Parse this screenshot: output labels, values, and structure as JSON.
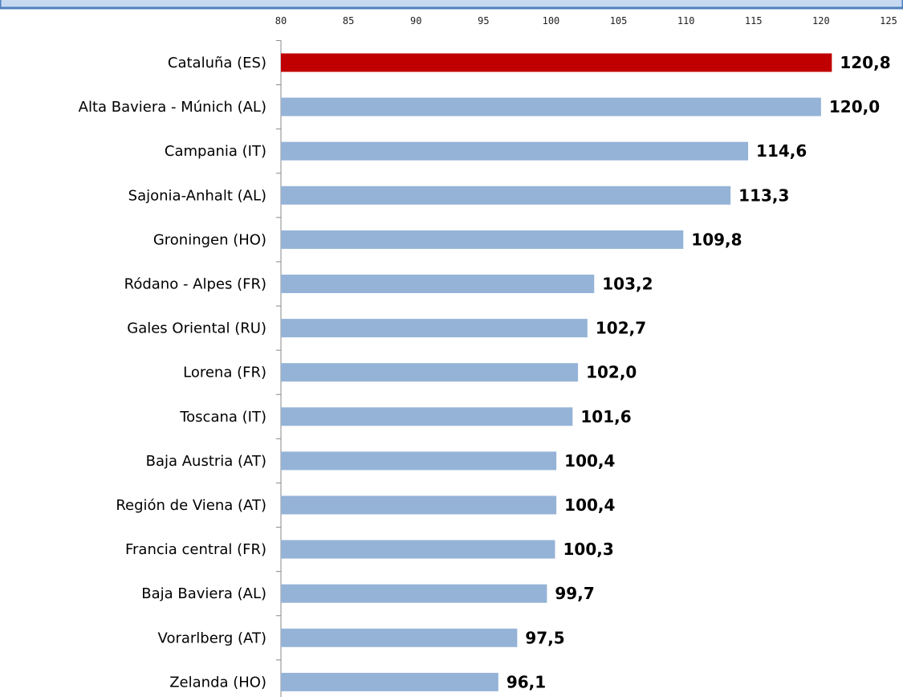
{
  "chart_data": {
    "type": "bar",
    "orientation": "horizontal",
    "categories": [
      "Cataluña (ES)",
      "Alta Baviera - Múnich (AL)",
      "Campania (IT)",
      "Sajonia-Anhalt (AL)",
      "Groningen (HO)",
      "Ródano - Alpes (FR)",
      "Gales Oriental (RU)",
      "Lorena (FR)",
      "Toscana (IT)",
      "Baja Austria (AT)",
      "Región de Viena (AT)",
      "Francia central (FR)",
      "Baja Baviera (AL)",
      "Vorarlberg (AT)",
      "Zelanda (HO)"
    ],
    "values": [
      120.8,
      120.0,
      114.6,
      113.3,
      109.8,
      103.2,
      102.7,
      102.0,
      101.6,
      100.4,
      100.4,
      100.3,
      99.7,
      97.5,
      96.1
    ],
    "value_labels": [
      "120,8",
      "120,0",
      "114,6",
      "113,3",
      "109,8",
      "103,2",
      "102,7",
      "102,0",
      "101,6",
      "100,4",
      "100,4",
      "100,3",
      "99,7",
      "97,5",
      "96,1"
    ],
    "colors": [
      "#c00000",
      "#95b3d7",
      "#95b3d7",
      "#95b3d7",
      "#95b3d7",
      "#95b3d7",
      "#95b3d7",
      "#95b3d7",
      "#95b3d7",
      "#95b3d7",
      "#95b3d7",
      "#95b3d7",
      "#95b3d7",
      "#95b3d7",
      "#95b3d7"
    ],
    "xlim": [
      80,
      125
    ],
    "xticks": [
      80,
      85,
      90,
      95,
      100,
      105,
      110,
      115,
      120,
      125
    ]
  }
}
